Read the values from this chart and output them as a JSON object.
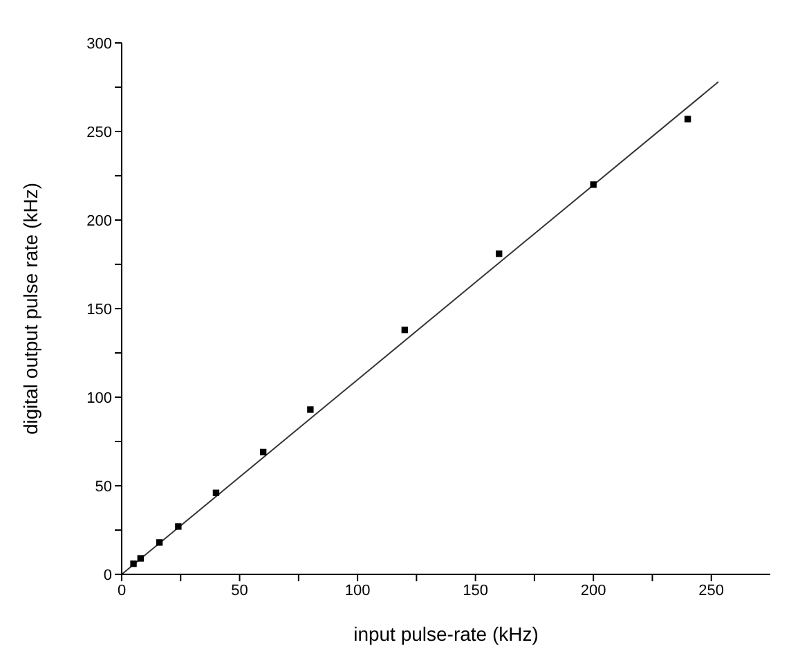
{
  "chart_data": {
    "type": "scatter",
    "xlabel": "input pulse-rate (kHz)",
    "ylabel": "digital output pulse rate (kHz)",
    "series": [
      {
        "marker": "square",
        "color": "#000000",
        "x": [
          5,
          8,
          16,
          24,
          40,
          60,
          80,
          120,
          160,
          200,
          240
        ],
        "values": [
          6,
          9,
          18,
          27,
          46,
          69,
          93,
          138,
          181,
          220,
          257
        ]
      },
      {
        "type": "line",
        "marker": "none",
        "color": "#333333",
        "x": [
          0,
          253
        ],
        "values": [
          0,
          278
        ]
      }
    ],
    "xlim": [
      0,
      275
    ],
    "ylim": [
      0,
      300
    ],
    "xticks": [
      0,
      {
        "value": 25,
        "label": null
      },
      50,
      {
        "value": 75,
        "label": null
      },
      100,
      {
        "value": 125,
        "label": null
      },
      150,
      {
        "value": 175,
        "label": null
      },
      200,
      {
        "value": 225,
        "label": null
      },
      250
    ],
    "yticks": [
      0,
      {
        "value": 25,
        "label": null
      },
      50,
      {
        "value": 75,
        "label": null
      },
      100,
      {
        "value": 125,
        "label": null
      },
      150,
      {
        "value": 175,
        "label": null
      },
      200,
      {
        "value": 225,
        "label": null
      },
      250,
      {
        "value": 275,
        "label": null
      },
      300
    ],
    "grid": false,
    "legend": false
  }
}
